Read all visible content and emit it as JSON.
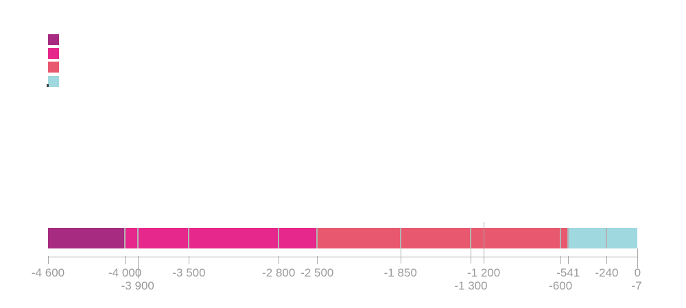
{
  "legend": {
    "swatches": [
      {
        "name": "eon-swatch-1",
        "color": "#A72B80"
      },
      {
        "name": "eon-swatch-2",
        "color": "#E6278C"
      },
      {
        "name": "eon-swatch-3",
        "color": "#E8586E"
      },
      {
        "name": "eon-swatch-4",
        "color": "#9FD8DE"
      }
    ]
  },
  "artifact_mark": {
    "color": "#3F3F3F"
  },
  "chart_data": {
    "type": "bar",
    "subtype": "horizontal-timeline-eon-bar",
    "title": "",
    "xlabel": "",
    "ylabel": "",
    "axis_range": [
      -4600,
      0
    ],
    "grid": "off",
    "legend_position": "top-left",
    "segments": [
      {
        "start": -4600,
        "end": -4000,
        "color": "#A72B80"
      },
      {
        "start": -4000,
        "end": -2500,
        "color": "#E6278C"
      },
      {
        "start": -2500,
        "end": -541,
        "color": "#E8586E"
      },
      {
        "start": -541,
        "end": 0,
        "color": "#9FD8DE"
      }
    ],
    "boundary_lines": [
      -4000,
      -3900,
      -3500,
      -2800,
      -2500,
      -1850,
      -1300,
      -600,
      -541,
      -240
    ],
    "marker_line_value": -1200,
    "end_line_value": 0,
    "ticks": [
      {
        "label": "-4 600",
        "value": -4600,
        "row": 1,
        "tick": "short"
      },
      {
        "label": "-4 000",
        "value": -4000,
        "row": 1,
        "tick": "short"
      },
      {
        "label": "-3 900",
        "value": -3900,
        "row": 2,
        "tick": "long"
      },
      {
        "label": "-3 500",
        "value": -3500,
        "row": 1,
        "tick": "short"
      },
      {
        "label": "-2 800",
        "value": -2800,
        "row": 1,
        "tick": "short"
      },
      {
        "label": "-2 500",
        "value": -2500,
        "row": 1,
        "tick": "short"
      },
      {
        "label": "-1 850",
        "value": -1850,
        "row": 1,
        "tick": "mid"
      },
      {
        "label": "-1 300",
        "value": -1300,
        "row": 2,
        "tick": "mid"
      },
      {
        "label": "-1 200",
        "value": -1200,
        "row": 1,
        "tick": "none"
      },
      {
        "label": "-600",
        "value": -600,
        "row": 2,
        "tick": "short"
      },
      {
        "label": "-541",
        "value": -541,
        "row": 1,
        "tick": "short"
      },
      {
        "label": "-240",
        "value": -240,
        "row": 1,
        "tick": "short"
      },
      {
        "label": "0",
        "value": 0,
        "row": 1,
        "tick": "none"
      },
      {
        "label": "-7",
        "value": -7,
        "row": 2,
        "tick": "none"
      }
    ]
  },
  "style": {
    "line_color": "#A8A8A8",
    "divider_color": "#B3B3B3",
    "label_color": "#9A9A9A"
  }
}
